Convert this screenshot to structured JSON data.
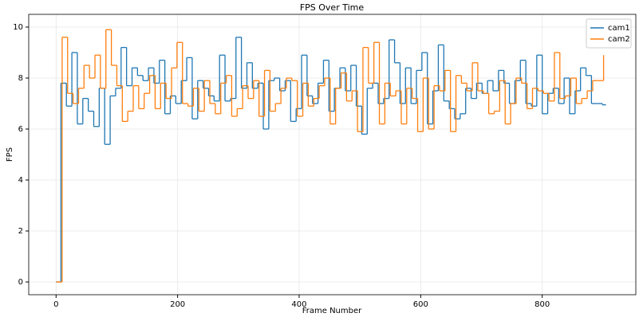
{
  "chart_data": {
    "type": "line",
    "step": "post",
    "title": "FPS Over Time",
    "xlabel": "Frame Number",
    "ylabel": "FPS",
    "xlim": [
      -45,
      954
    ],
    "ylim": [
      -0.5,
      10.5
    ],
    "xticks": [
      0,
      200,
      400,
      600,
      800
    ],
    "yticks": [
      0,
      2,
      4,
      6,
      8,
      10
    ],
    "grid": true,
    "legend": "upper right",
    "series": [
      {
        "name": "cam1",
        "color": "#1f77b4",
        "x": [
          0,
          5,
          8,
          17,
          26,
          35,
          44,
          53,
          62,
          71,
          80,
          89,
          98,
          107,
          116,
          125,
          134,
          143,
          152,
          161,
          170,
          179,
          188,
          197,
          206,
          215,
          224,
          233,
          242,
          251,
          260,
          269,
          278,
          287,
          296,
          305,
          314,
          323,
          332,
          341,
          350,
          359,
          368,
          377,
          386,
          395,
          404,
          413,
          422,
          431,
          440,
          449,
          458,
          467,
          476,
          485,
          494,
          503,
          512,
          521,
          530,
          539,
          548,
          557,
          566,
          575,
          584,
          593,
          602,
          611,
          620,
          629,
          638,
          647,
          656,
          665,
          674,
          683,
          692,
          701,
          710,
          719,
          728,
          737,
          746,
          755,
          764,
          773,
          782,
          791,
          800,
          809,
          818,
          827,
          836,
          845,
          854,
          863,
          872,
          881,
          890,
          899,
          905
        ],
        "values": [
          0,
          0,
          7.8,
          6.9,
          9.0,
          6.2,
          7.2,
          6.7,
          6.1,
          7.6,
          5.4,
          7.3,
          7.6,
          9.2,
          7.7,
          8.4,
          8.1,
          7.9,
          8.4,
          7.8,
          8.7,
          6.6,
          7.3,
          7.0,
          7.9,
          8.8,
          6.4,
          7.9,
          7.6,
          7.3,
          7.1,
          8.9,
          7.1,
          7.2,
          9.6,
          7.6,
          8.6,
          7.6,
          7.8,
          6.0,
          7.9,
          8.0,
          7.5,
          7.9,
          6.3,
          6.8,
          8.9,
          7.3,
          7.0,
          7.8,
          8.7,
          6.7,
          7.6,
          8.4,
          7.5,
          8.5,
          6.9,
          5.8,
          7.6,
          7.8,
          7.0,
          7.2,
          9.5,
          8.6,
          7.0,
          8.4,
          7.0,
          8.3,
          9.0,
          6.2,
          7.5,
          9.3,
          7.1,
          6.8,
          6.4,
          6.6,
          7.6,
          7.2,
          7.8,
          7.4,
          7.9,
          7.5,
          8.3,
          7.8,
          7.0,
          7.9,
          8.7,
          7.0,
          6.9,
          8.9,
          6.6,
          7.4,
          7.6,
          7.0,
          8.0,
          6.6,
          7.5,
          8.4,
          8.1,
          7.0,
          7.0,
          6.95,
          6.95
        ]
      },
      {
        "name": "cam2",
        "color": "#ff7f0e",
        "x": [
          0,
          10,
          19,
          28,
          37,
          46,
          55,
          64,
          73,
          82,
          91,
          100,
          109,
          118,
          127,
          136,
          145,
          154,
          163,
          172,
          181,
          190,
          199,
          208,
          217,
          226,
          235,
          244,
          253,
          262,
          271,
          280,
          289,
          298,
          307,
          316,
          325,
          334,
          343,
          352,
          361,
          370,
          379,
          388,
          397,
          406,
          415,
          424,
          433,
          442,
          451,
          460,
          469,
          478,
          487,
          496,
          505,
          514,
          523,
          532,
          541,
          550,
          559,
          568,
          577,
          586,
          595,
          604,
          613,
          622,
          631,
          640,
          649,
          658,
          667,
          676,
          685,
          694,
          703,
          712,
          721,
          730,
          739,
          748,
          757,
          766,
          775,
          784,
          793,
          802,
          811,
          820,
          829,
          838,
          847,
          856,
          865,
          874,
          883,
          892,
          901
        ],
        "values": [
          0,
          9.6,
          7.4,
          7.0,
          7.6,
          8.5,
          8.0,
          8.9,
          7.6,
          9.9,
          8.5,
          7.7,
          6.3,
          6.7,
          7.7,
          6.8,
          7.4,
          8.1,
          6.8,
          7.8,
          7.2,
          8.4,
          9.4,
          7.0,
          6.9,
          7.6,
          6.7,
          7.9,
          7.0,
          6.6,
          7.8,
          8.1,
          6.5,
          6.8,
          7.7,
          7.2,
          7.9,
          6.5,
          8.3,
          6.7,
          7.0,
          7.6,
          8.0,
          7.9,
          6.5,
          7.8,
          6.9,
          7.2,
          7.7,
          8.0,
          6.2,
          7.6,
          8.2,
          7.1,
          7.5,
          5.9,
          9.2,
          7.8,
          9.4,
          6.2,
          7.8,
          7.3,
          7.5,
          6.2,
          7.6,
          7.2,
          5.9,
          8.0,
          6.0,
          7.7,
          7.5,
          8.3,
          5.9,
          8.1,
          7.8,
          7.5,
          8.6,
          7.5,
          7.4,
          6.6,
          6.7,
          7.9,
          6.2,
          7.0,
          8.0,
          7.8,
          6.8,
          7.6,
          7.5,
          7.4,
          7.1,
          9.0,
          7.2,
          7.3,
          8.0,
          7.0,
          7.2,
          7.5,
          7.9,
          7.9,
          8.9
        ]
      }
    ]
  }
}
